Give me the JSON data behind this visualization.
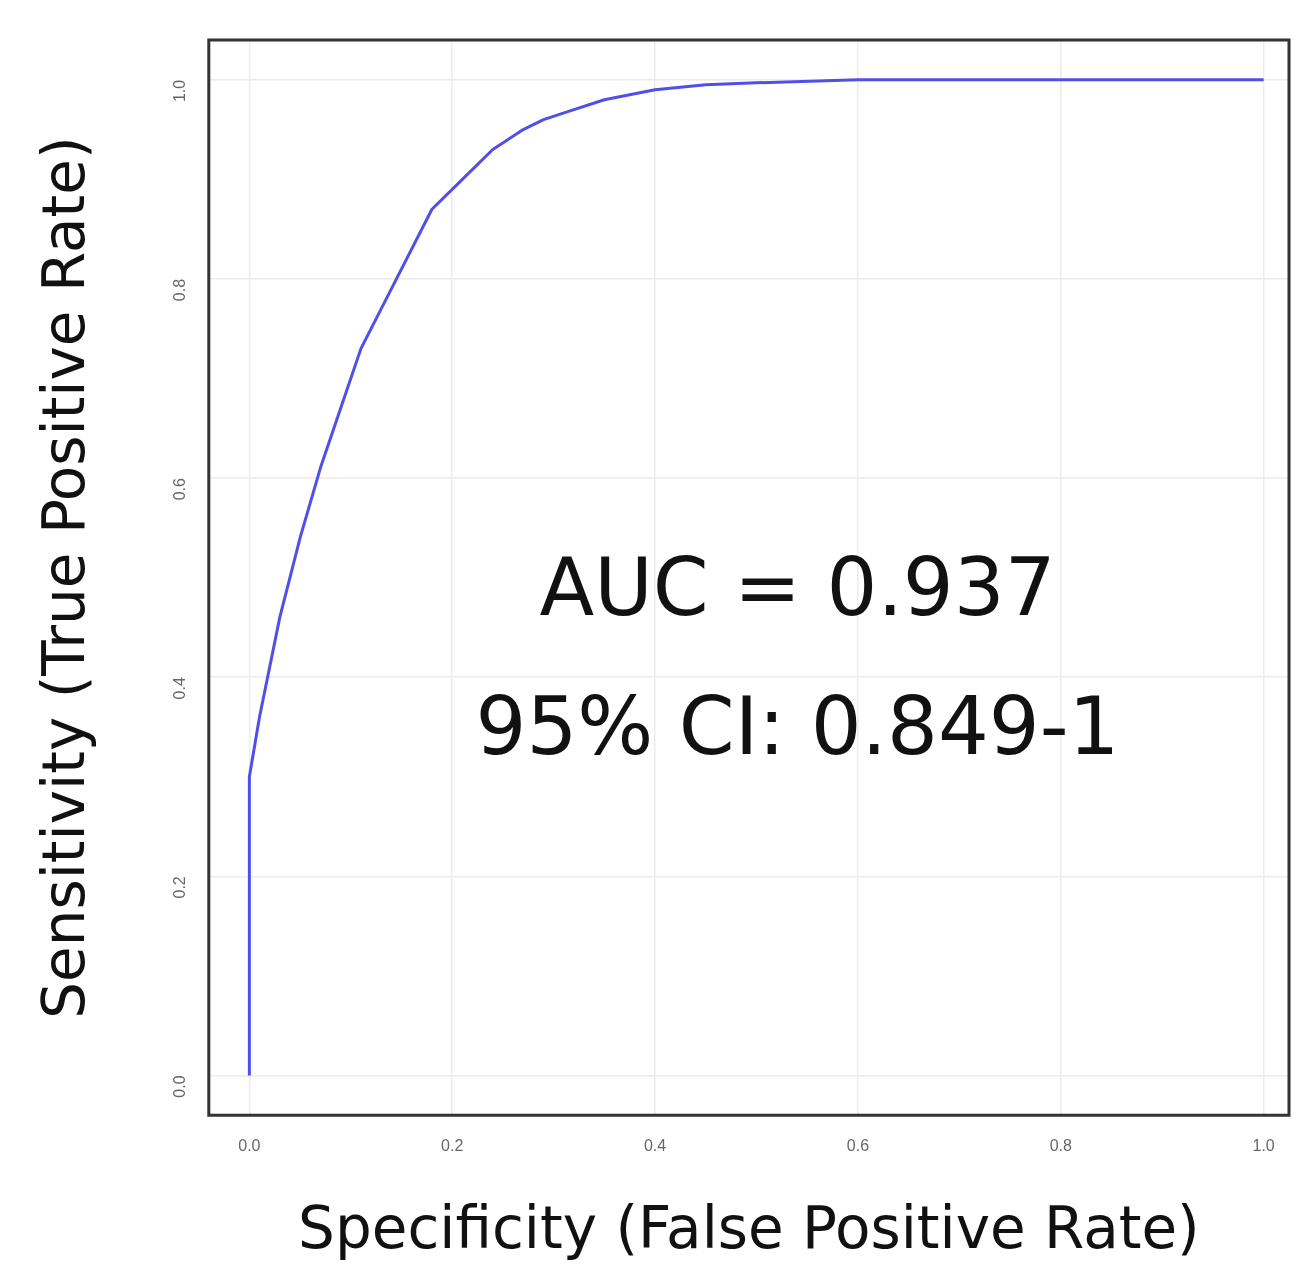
{
  "chart_data": {
    "type": "line",
    "xlabel": "Specificity (False Positive Rate)",
    "ylabel": "Sensitivity (True Positive Rate)",
    "annotations": [
      "AUC = 0.937",
      "95% CI: 0.849-1"
    ],
    "series": [
      {
        "color": "#5050e8",
        "x": [
          0,
          0,
          0.01,
          0.03,
          0.05,
          0.07,
          0.09,
          0.11,
          0.14,
          0.18,
          0.21,
          0.24,
          0.27,
          0.29,
          0.32,
          0.35,
          0.4,
          0.45,
          0.5,
          0.6,
          0.8,
          1
        ],
        "values": [
          0,
          0.3,
          0.36,
          0.46,
          0.54,
          0.61,
          0.67,
          0.73,
          0.79,
          0.87,
          0.9,
          0.93,
          0.95,
          0.96,
          0.97,
          0.98,
          0.99,
          0.995,
          0.997,
          1,
          1,
          1
        ]
      }
    ],
    "xlim": [
      -0.04,
      1.025
    ],
    "ylim": [
      -0.04,
      1.04
    ],
    "xticks": [
      {
        "value": 0,
        "label": "0.0"
      },
      0.2,
      0.4,
      0.6,
      0.8,
      {
        "value": 1,
        "label": "1.0"
      }
    ],
    "yticks": [
      {
        "value": 0,
        "label": "0.0"
      },
      0.2,
      0.4,
      0.6,
      0.8,
      {
        "value": 1,
        "label": "1.0"
      }
    ],
    "grid": true,
    "marker": "none",
    "line_style": "solid",
    "legend": false
  }
}
